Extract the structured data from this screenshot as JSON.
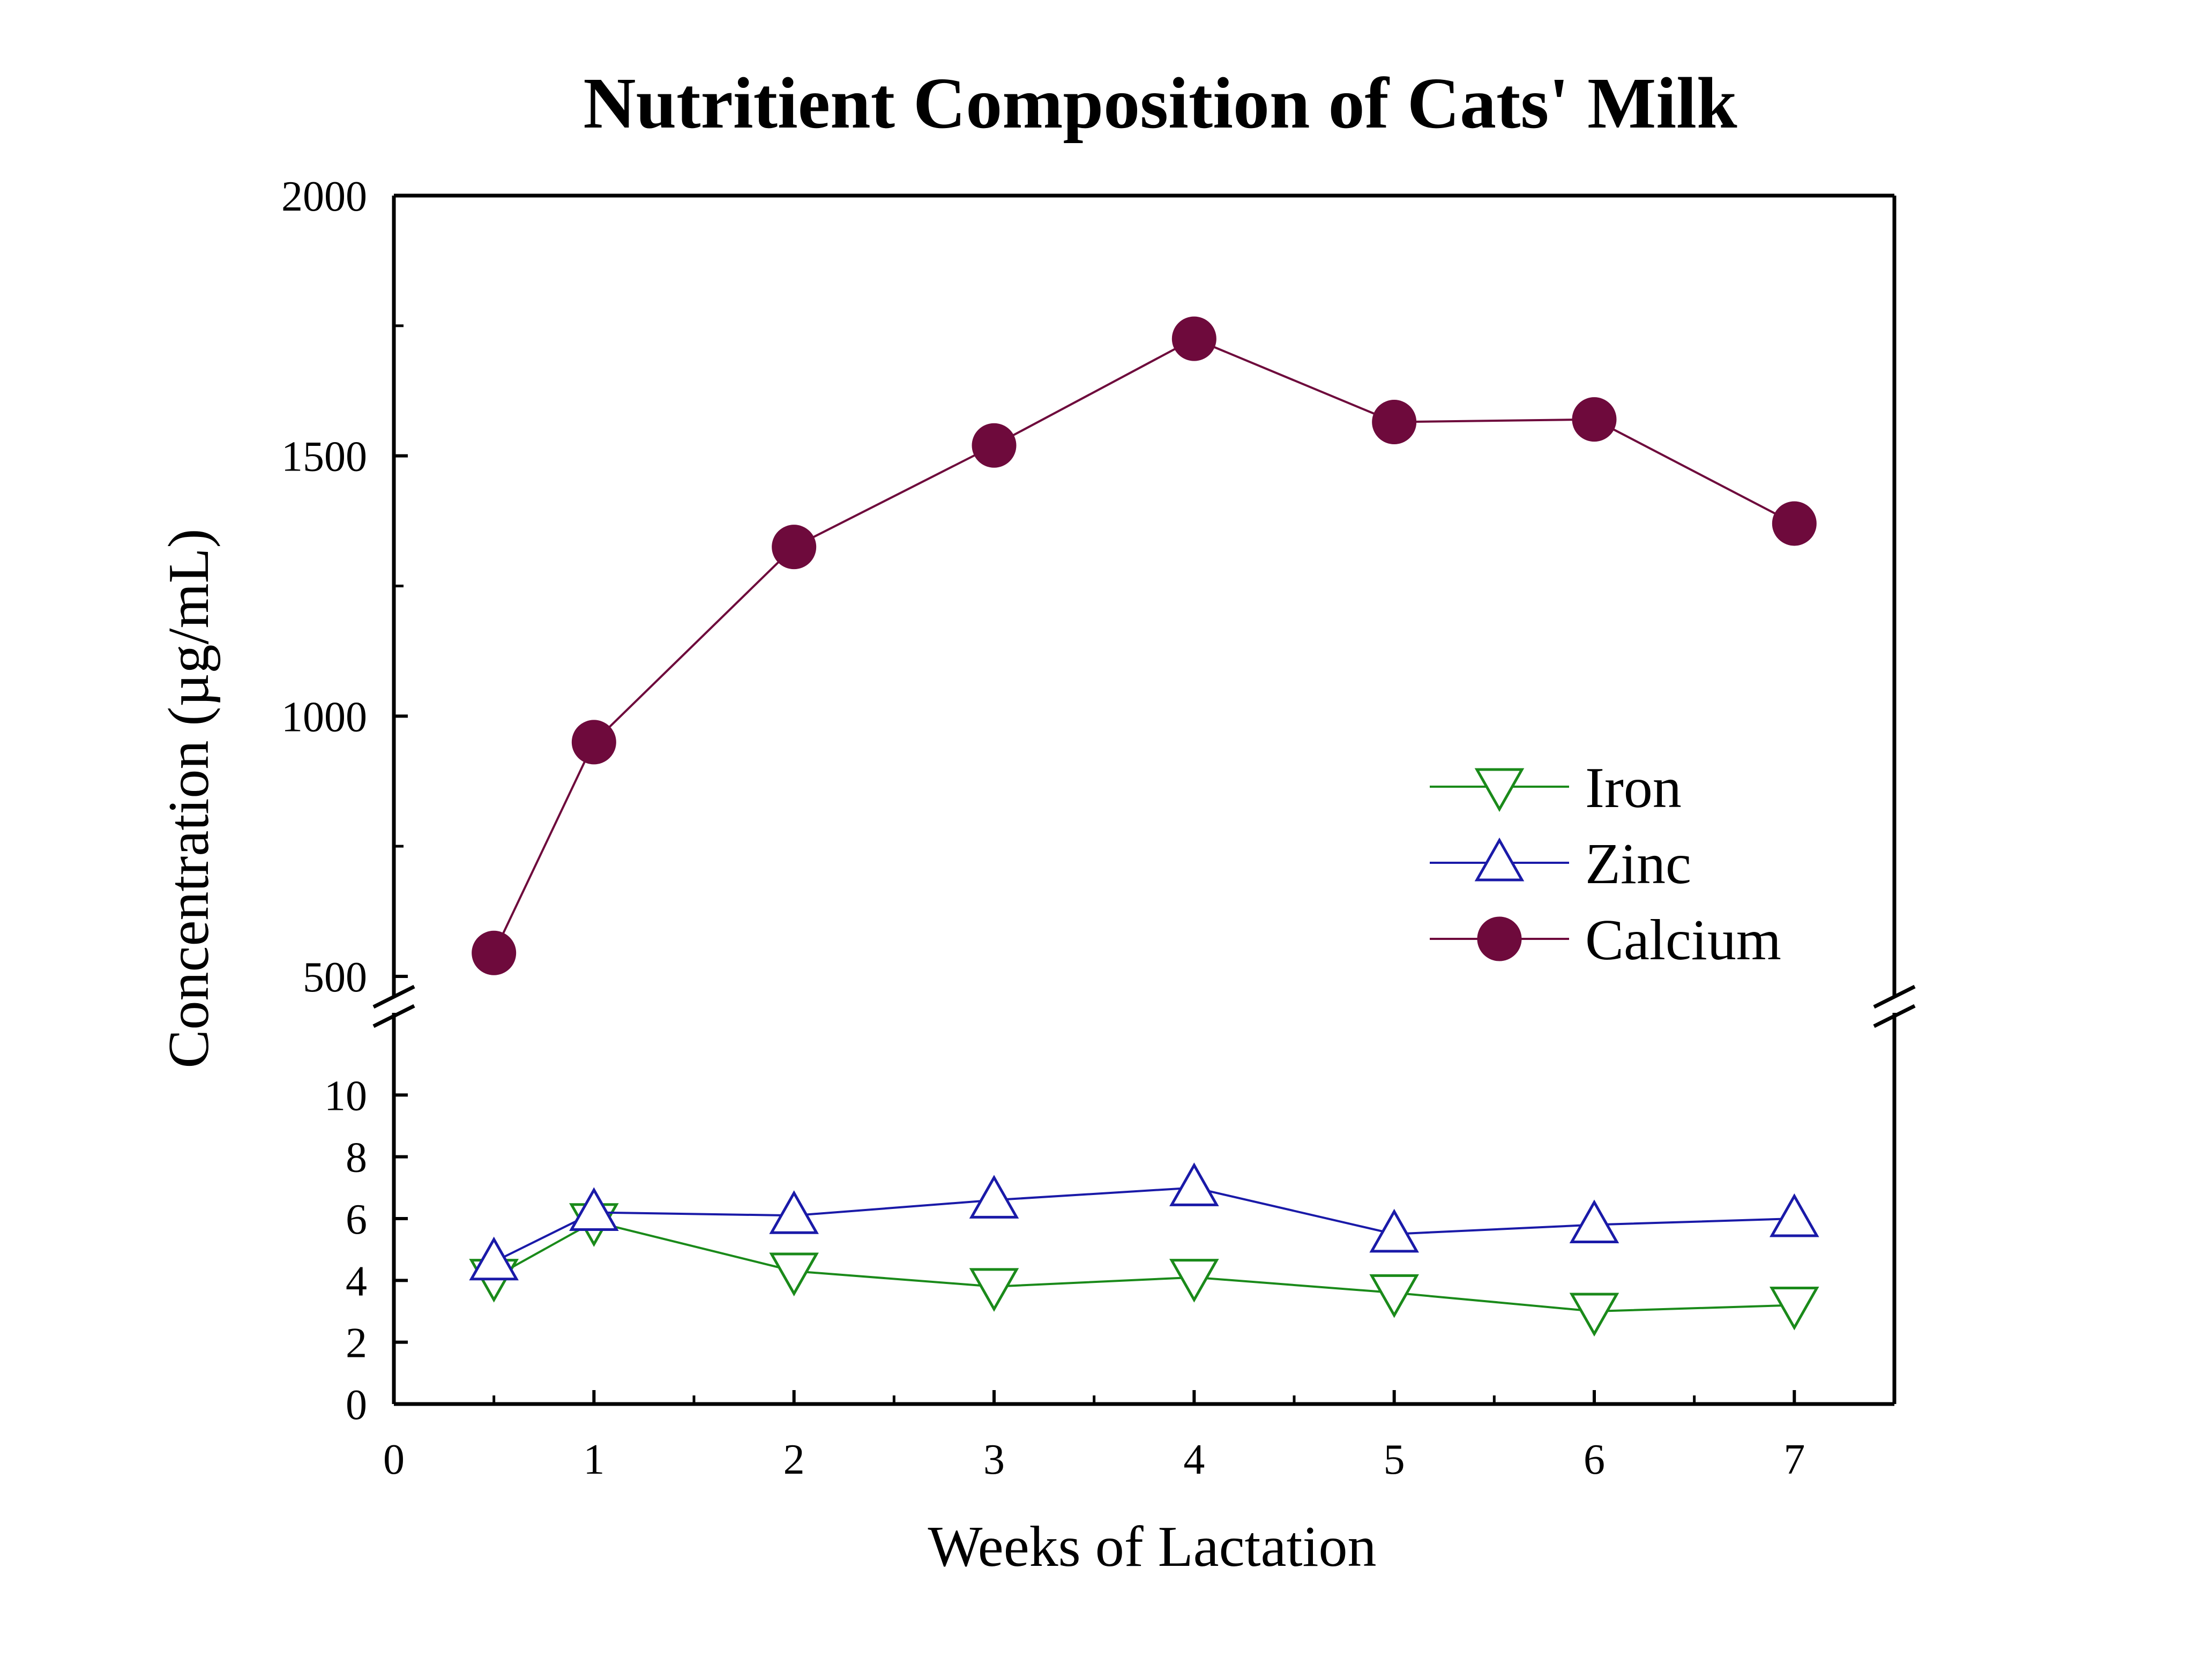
{
  "chart_data": {
    "type": "line",
    "title": "Nutritient Composition of Cats' Milk",
    "xlabel": "Weeks of Lactation",
    "ylabel": "Concentration (µg/mL)",
    "x": [
      0.5,
      1,
      2,
      3,
      4,
      5,
      6,
      7
    ],
    "xlim": [
      0,
      7.5
    ],
    "x_ticks": [
      "0",
      "1",
      "2",
      "3",
      "4",
      "5",
      "6",
      "7"
    ],
    "broken_y_axis": true,
    "upper_ylim": [
      500,
      2000
    ],
    "upper_ticks": [
      "500",
      "1000",
      "1500",
      "2000"
    ],
    "lower_ylim": [
      0,
      12
    ],
    "lower_ticks": [
      "0",
      "2",
      "4",
      "6",
      "8",
      "10"
    ],
    "series": [
      {
        "name": "Iron",
        "marker": "triangle-down-open",
        "color": "#1a8a1a",
        "values": [
          4.1,
          5.9,
          4.3,
          3.8,
          4.1,
          3.6,
          3.0,
          3.2
        ]
      },
      {
        "name": "Zinc",
        "marker": "triangle-up-open",
        "color": "#1a1aa8",
        "values": [
          4.6,
          6.2,
          6.1,
          6.6,
          7.0,
          5.5,
          5.8,
          6.0
        ]
      },
      {
        "name": "Calcium",
        "marker": "circle-filled",
        "color": "#6e0a3c",
        "values": [
          545,
          950,
          1325,
          1520,
          1725,
          1565,
          1570,
          1370
        ]
      }
    ],
    "legend": {
      "position": "right",
      "order": [
        "Iron",
        "Zinc",
        "Calcium"
      ]
    }
  }
}
